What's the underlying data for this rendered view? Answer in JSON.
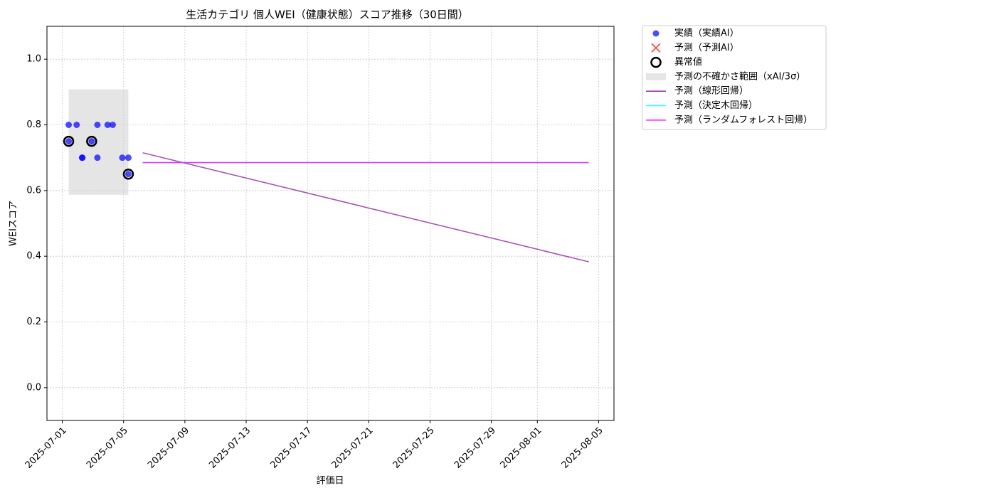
{
  "chart_data": {
    "type": "scatter",
    "title": "生活カテゴリ 個人WEI（健康状態）スコア推移（30日間）",
    "x_label": "評価日",
    "y_label": "WEIスコア",
    "xlim": [
      "2025-06-30",
      "2025-08-06"
    ],
    "xticks": [
      "2025-07-01",
      "2025-07-05",
      "2025-07-09",
      "2025-07-13",
      "2025-07-17",
      "2025-07-21",
      "2025-07-25",
      "2025-07-29",
      "2025-08-01",
      "2025-08-05"
    ],
    "ylim": [
      -0.1,
      1.1
    ],
    "yticks": [
      {
        "value": 0,
        "label": "0.0"
      },
      0.2,
      0.4,
      0.6,
      0.8,
      {
        "value": 1,
        "label": "1.0"
      }
    ],
    "grid": true,
    "legend": "outside-upper-right",
    "series": [
      {
        "name": "実績（実績AI）",
        "kind": "scatter",
        "color": "#0000ff",
        "x": [
          "2025-07-01T10:00",
          "2025-07-01T10:00",
          "2025-07-01T22:30",
          "2025-07-02T07:00",
          "2025-07-02T07:30",
          "2025-07-02T22:00",
          "2025-07-03T07:00",
          "2025-07-03T07:00",
          "2025-07-03T23:00",
          "2025-07-04T07:00",
          "2025-07-04T22:00",
          "2025-07-05T07:30",
          "2025-07-05T07:30"
        ],
        "values": [
          0.8,
          0.75,
          0.8,
          0.7,
          0.7,
          0.75,
          0.8,
          0.7,
          0.8,
          0.8,
          0.7,
          0.7,
          0.65
        ]
      },
      {
        "name": "予測（予測AI）",
        "kind": "x-marker",
        "color": "#ff0000",
        "x": [],
        "values": []
      },
      {
        "name": "異常値",
        "kind": "anomaly",
        "color": "#000000",
        "x": [
          "2025-07-01T10:00",
          "2025-07-02T22:00",
          "2025-07-05T07:30"
        ],
        "values": [
          0.75,
          0.75,
          0.65
        ]
      },
      {
        "name": "予測の不確かさ範囲（xAI/3σ）",
        "kind": "band",
        "color": "#d3d3d3",
        "x": [
          "2025-07-01T10:00",
          "2025-07-05T07:30"
        ],
        "lower": [
          0.587,
          0.587
        ],
        "upper": [
          0.908,
          0.908
        ]
      },
      {
        "name": "予測（線形回帰）",
        "kind": "line",
        "color": "#8b1a9b",
        "x": [
          "2025-07-06T06:00",
          "2025-08-04T08:30"
        ],
        "values": [
          0.715,
          0.383
        ]
      },
      {
        "name": "予測（決定木回帰）",
        "kind": "line",
        "color": "#00ffff",
        "x": [
          "2025-07-06T06:00",
          "2025-08-04T08:30"
        ],
        "values": [
          0.685,
          0.685
        ]
      },
      {
        "name": "予測（ランダムフォレスト回帰）",
        "kind": "line",
        "color": "#ff00ff",
        "x": [
          "2025-07-06T06:00",
          "2025-08-04T08:30"
        ],
        "values": [
          0.685,
          0.685
        ]
      }
    ]
  }
}
